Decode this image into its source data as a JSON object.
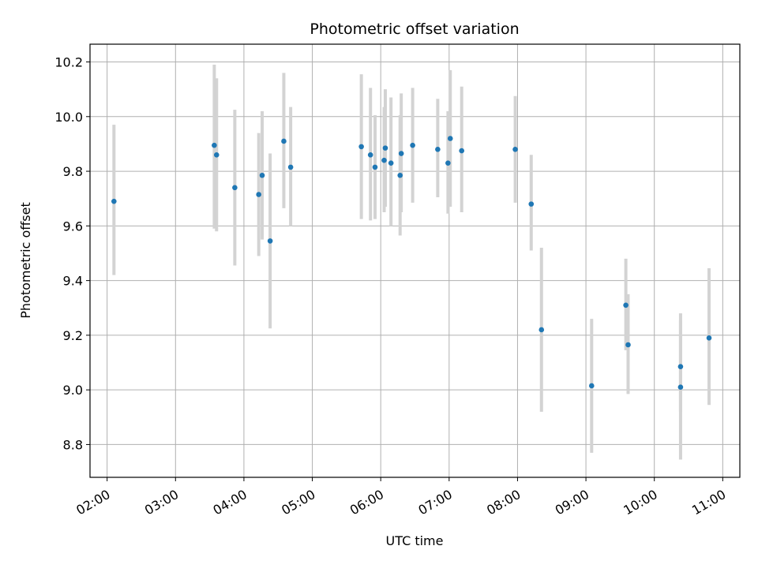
{
  "chart_data": {
    "type": "scatter",
    "title": "Photometric offset variation",
    "xlabel": "UTC time",
    "ylabel": "Photometric offset",
    "xlim": [
      "01:45",
      "11:15"
    ],
    "ylim": [
      8.68,
      10.265
    ],
    "grid": true,
    "x_ticks": [
      "02:00",
      "03:00",
      "04:00",
      "05:00",
      "06:00",
      "07:00",
      "08:00",
      "09:00",
      "10:00",
      "11:00"
    ],
    "y_ticks": [
      8.8,
      9.0,
      9.2,
      9.4,
      9.6,
      9.8,
      10.0,
      10.2
    ],
    "y_tick_labels": [
      "8.8",
      "9.0",
      "9.2",
      "9.4",
      "9.6",
      "9.8",
      "10.0",
      "10.2"
    ],
    "marker_color": "#1f77b4",
    "errorbar_color": "#d3d3d3",
    "points": [
      {
        "t": "02:06",
        "y": 9.69,
        "lo": 9.42,
        "hi": 9.97
      },
      {
        "t": "03:34",
        "y": 9.895,
        "lo": 9.59,
        "hi": 10.19
      },
      {
        "t": "03:36",
        "y": 9.86,
        "lo": 9.58,
        "hi": 10.14
      },
      {
        "t": "03:52",
        "y": 9.74,
        "lo": 9.455,
        "hi": 10.025
      },
      {
        "t": "04:13",
        "y": 9.715,
        "lo": 9.49,
        "hi": 9.94
      },
      {
        "t": "04:16",
        "y": 9.785,
        "lo": 9.55,
        "hi": 10.02
      },
      {
        "t": "04:23",
        "y": 9.545,
        "lo": 9.225,
        "hi": 9.865
      },
      {
        "t": "04:35",
        "y": 9.91,
        "lo": 9.665,
        "hi": 10.16
      },
      {
        "t": "04:41",
        "y": 9.815,
        "lo": 9.6,
        "hi": 10.035
      },
      {
        "t": "05:43",
        "y": 9.89,
        "lo": 9.625,
        "hi": 10.155
      },
      {
        "t": "05:51",
        "y": 9.86,
        "lo": 9.62,
        "hi": 10.105
      },
      {
        "t": "05:55",
        "y": 9.815,
        "lo": 9.625,
        "hi": 10.005
      },
      {
        "t": "06:03",
        "y": 9.84,
        "lo": 9.65,
        "hi": 10.035
      },
      {
        "t": "06:04",
        "y": 9.885,
        "lo": 9.67,
        "hi": 10.1
      },
      {
        "t": "06:09",
        "y": 9.83,
        "lo": 9.6,
        "hi": 10.07
      },
      {
        "t": "06:17",
        "y": 9.785,
        "lo": 9.565,
        "hi": 10.005
      },
      {
        "t": "06:18",
        "y": 9.865,
        "lo": 9.65,
        "hi": 10.085
      },
      {
        "t": "06:28",
        "y": 9.895,
        "lo": 9.685,
        "hi": 10.105
      },
      {
        "t": "06:50",
        "y": 9.88,
        "lo": 9.705,
        "hi": 10.065
      },
      {
        "t": "06:59",
        "y": 9.83,
        "lo": 9.645,
        "hi": 10.02
      },
      {
        "t": "07:01",
        "y": 9.92,
        "lo": 9.67,
        "hi": 10.17
      },
      {
        "t": "07:11",
        "y": 9.875,
        "lo": 9.65,
        "hi": 10.11
      },
      {
        "t": "07:58",
        "y": 9.88,
        "lo": 9.685,
        "hi": 10.075
      },
      {
        "t": "08:12",
        "y": 9.68,
        "lo": 9.51,
        "hi": 9.86
      },
      {
        "t": "08:21",
        "y": 9.22,
        "lo": 8.92,
        "hi": 9.52
      },
      {
        "t": "09:05",
        "y": 9.015,
        "lo": 8.77,
        "hi": 9.26
      },
      {
        "t": "09:35",
        "y": 9.31,
        "lo": 9.145,
        "hi": 9.48
      },
      {
        "t": "09:37",
        "y": 9.165,
        "lo": 8.985,
        "hi": 9.35
      },
      {
        "t": "10:23",
        "y": 9.085,
        "lo": 8.92,
        "hi": 9.255
      },
      {
        "t": "10:23",
        "y": 9.01,
        "lo": 8.745,
        "hi": 9.28
      },
      {
        "t": "10:48",
        "y": 9.19,
        "lo": 8.945,
        "hi": 9.445
      }
    ]
  }
}
